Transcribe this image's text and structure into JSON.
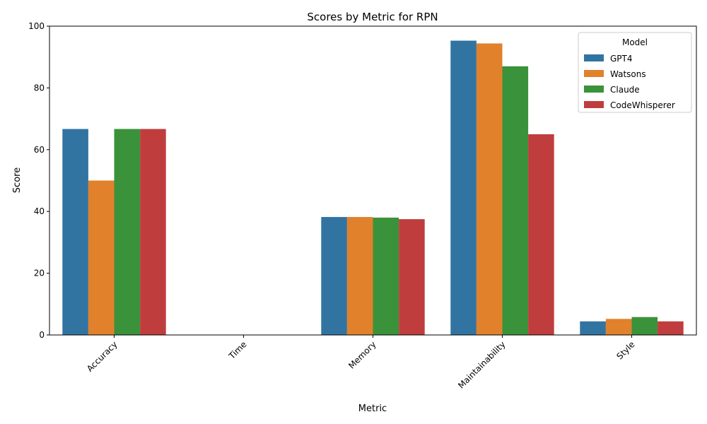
{
  "chart_data": {
    "type": "bar",
    "title": "Scores by Metric for RPN",
    "xlabel": "Metric",
    "ylabel": "Score",
    "ylim": [
      0,
      100
    ],
    "yticks": [
      0,
      20,
      40,
      60,
      80,
      100
    ],
    "categories": [
      "Accuracy",
      "Time",
      "Memory",
      "Maintainability",
      "Style"
    ],
    "grid": false,
    "legend": {
      "title": "Model",
      "placement": "top-right"
    },
    "series": [
      {
        "name": "GPT4",
        "color": "#3274a1",
        "values": [
          66.7,
          0,
          38.2,
          95.3,
          4.4
        ]
      },
      {
        "name": "Watsons",
        "color": "#e1812c",
        "values": [
          50.0,
          0,
          38.2,
          94.4,
          5.2
        ]
      },
      {
        "name": "Claude",
        "color": "#3a923a",
        "values": [
          66.7,
          0,
          38.0,
          87.0,
          5.8
        ]
      },
      {
        "name": "CodeWhisperer",
        "color": "#c03d3e",
        "values": [
          66.7,
          0,
          37.5,
          65.0,
          4.4
        ]
      }
    ]
  }
}
